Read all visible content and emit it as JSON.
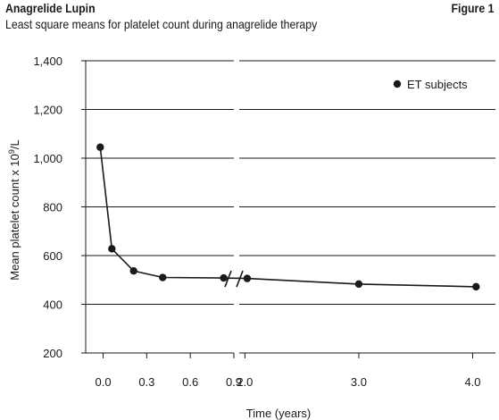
{
  "header": {
    "title": "Anagrelide Lupin",
    "figure_label": "Figure 1",
    "subtitle": "Least square means for platelet count during anagrelide therapy"
  },
  "colors": {
    "ink": "#1a1a1a",
    "grid": "#1a1a1a"
  },
  "chart_data": {
    "type": "line",
    "title": "Least square means for platelet count during anagrelide therapy",
    "ylabel": "Mean platelet count x 10",
    "ylabel_sup": "9",
    "ylabel_unit": "/L",
    "xlabel": "Time (years)",
    "ylim": [
      200,
      1400
    ],
    "yticks": [
      200,
      400,
      600,
      800,
      1000,
      1200,
      1400
    ],
    "ytick_labels": [
      "200",
      "400",
      "600",
      "800",
      "1,000",
      "1,200",
      "1,400"
    ],
    "grid": true,
    "broken_x_axis": true,
    "x_segments": [
      {
        "xlim": [
          -0.12,
          0.9
        ],
        "ticks": [
          0.0,
          0.3,
          0.6,
          0.9
        ],
        "tick_labels": [
          "0.0",
          "0.3",
          "0.6",
          "0.9"
        ]
      },
      {
        "xlim": [
          1.95,
          4.2
        ],
        "ticks": [
          2.0,
          3.0,
          4.0
        ],
        "tick_labels": [
          "2.0",
          "3.0",
          "4.0"
        ]
      }
    ],
    "legend": {
      "position": "top-right",
      "entries": [
        "ET subjects"
      ]
    },
    "series": [
      {
        "name": "ET subjects",
        "x": [
          -0.02,
          0.06,
          0.21,
          0.41,
          0.83,
          2.02,
          3.0,
          4.03
        ],
        "y": [
          1045,
          628,
          537,
          510,
          508,
          506,
          483,
          472
        ]
      }
    ]
  }
}
